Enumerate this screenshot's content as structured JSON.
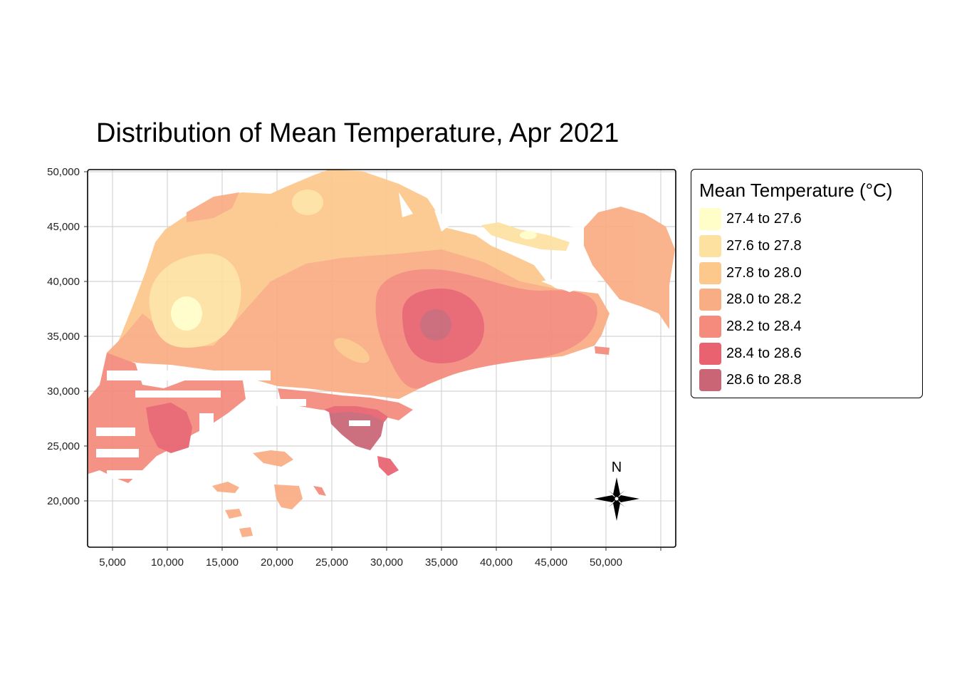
{
  "title": "Distribution of Mean Temperature, Apr 2021",
  "legend": {
    "title": "Mean Temperature (°C)",
    "items": [
      {
        "label": "27.4 to 27.6",
        "color": "#fffdc8"
      },
      {
        "label": "27.6 to 27.8",
        "color": "#fde1a1"
      },
      {
        "label": "27.8 to 28.0",
        "color": "#fcc88c"
      },
      {
        "label": "28.0 to 28.2",
        "color": "#f9ad84"
      },
      {
        "label": "28.2 to 28.4",
        "color": "#f48b7c"
      },
      {
        "label": "28.4 to 28.6",
        "color": "#e8636f"
      },
      {
        "label": "28.6 to 28.8",
        "color": "#c96575"
      }
    ]
  },
  "axes": {
    "x_ticks": [
      "5,000",
      "10,000",
      "15,000",
      "20,000",
      "25,000",
      "30,000",
      "35,000",
      "40,000",
      "45,000",
      "50,000"
    ],
    "y_ticks": [
      "50,000",
      "45,000",
      "40,000",
      "35,000",
      "30,000",
      "25,000",
      "20,000"
    ]
  },
  "compass": {
    "label": "N",
    "icon": "north-arrow-compass-rose"
  }
}
